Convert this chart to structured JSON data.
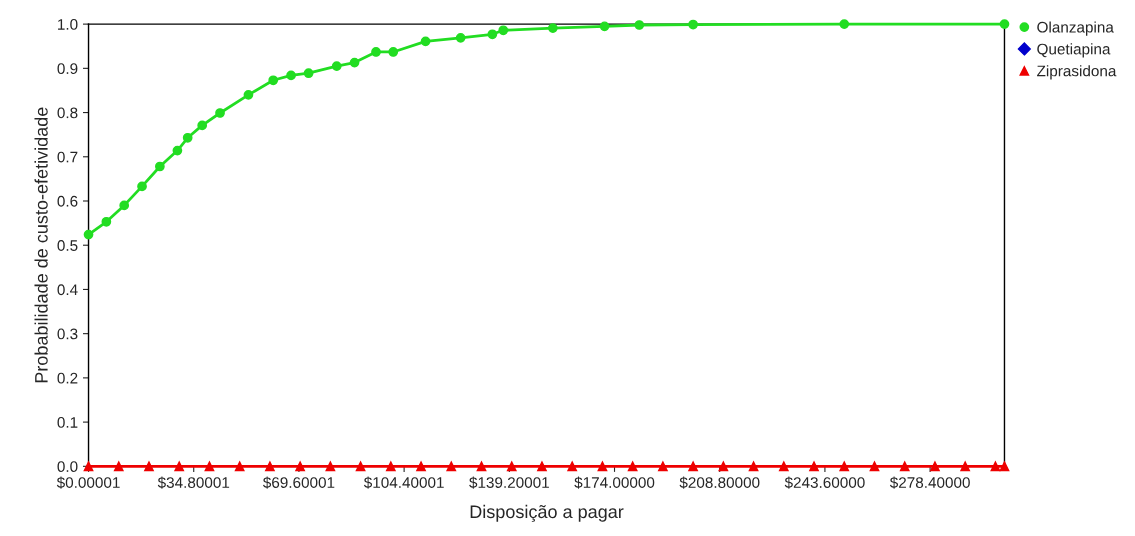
{
  "chart_data": {
    "type": "line",
    "xlabel": "Disposição a pagar",
    "ylabel": "Probabilidade de custo-efetividade",
    "xlim": [
      0,
      303
    ],
    "ylim": [
      0,
      1
    ],
    "xticks": [
      {
        "value": 1e-05,
        "label": "$0.00001"
      },
      {
        "value": 34.80001,
        "label": "$34.80001"
      },
      {
        "value": 69.60001,
        "label": "$69.60001"
      },
      {
        "value": 104.40001,
        "label": "$104.40001"
      },
      {
        "value": 139.20001,
        "label": "$139.20001"
      },
      {
        "value": 174.0,
        "label": "$174.00000"
      },
      {
        "value": 208.8,
        "label": "$208.80000"
      },
      {
        "value": 243.6,
        "label": "$243.60000"
      },
      {
        "value": 278.4,
        "label": "$278.40000"
      }
    ],
    "yticks": [
      {
        "value": 0,
        "label": "0.0"
      },
      {
        "value": 0.1,
        "label": "0.1"
      },
      {
        "value": 0.2,
        "label": "0.2"
      },
      {
        "value": 0.3,
        "label": "0.3"
      },
      {
        "value": 0.4,
        "label": "0.4"
      },
      {
        "value": 0.5,
        "label": "0.5"
      },
      {
        "value": 0.6,
        "label": "0.6"
      },
      {
        "value": 0.7,
        "label": "0.7"
      },
      {
        "value": 0.8,
        "label": "0.8"
      },
      {
        "value": 0.9,
        "label": "0.9"
      },
      {
        "value": 1,
        "label": "1.0"
      }
    ],
    "grid": false,
    "legend": "top right",
    "series": [
      {
        "name": "Olanzapina",
        "color": "#22dd22",
        "marker": "circle",
        "x": [
          0,
          5.9,
          11.8,
          17.7,
          23.6,
          29.4,
          32.8,
          37.6,
          43.5,
          52.9,
          61.1,
          67,
          72.8,
          82.1,
          88,
          95.1,
          100.8,
          111.5,
          123.1,
          133.6,
          137.2,
          153.6,
          170.7,
          182.2,
          200,
          250,
          303
        ],
        "values": [
          0.524,
          0.553,
          0.59,
          0.633,
          0.678,
          0.714,
          0.743,
          0.771,
          0.799,
          0.84,
          0.873,
          0.884,
          0.889,
          0.905,
          0.913,
          0.937,
          0.937,
          0.961,
          0.969,
          0.977,
          0.986,
          0.991,
          0.995,
          0.998,
          0.999,
          1.0,
          1.0
        ]
      },
      {
        "name": "Quetiapina",
        "color": "#0000cc",
        "marker": "diamond"
      },
      {
        "name": "Ziprasidona",
        "color": "#ee0000",
        "marker": "triangle",
        "x": [
          0,
          10,
          20,
          30,
          40,
          50,
          60,
          70,
          80,
          90,
          100,
          110,
          120,
          130,
          140,
          150,
          160,
          170,
          180,
          190,
          200,
          210,
          220,
          230,
          240,
          250,
          260,
          270,
          280,
          290,
          300,
          303
        ],
        "values": [
          0,
          0,
          0,
          0,
          0,
          0,
          0,
          0,
          0,
          0,
          0,
          0,
          0,
          0,
          0,
          0,
          0,
          0,
          0,
          0,
          0,
          0,
          0,
          0,
          0,
          0,
          0,
          0,
          0,
          0,
          0,
          0
        ]
      }
    ]
  }
}
